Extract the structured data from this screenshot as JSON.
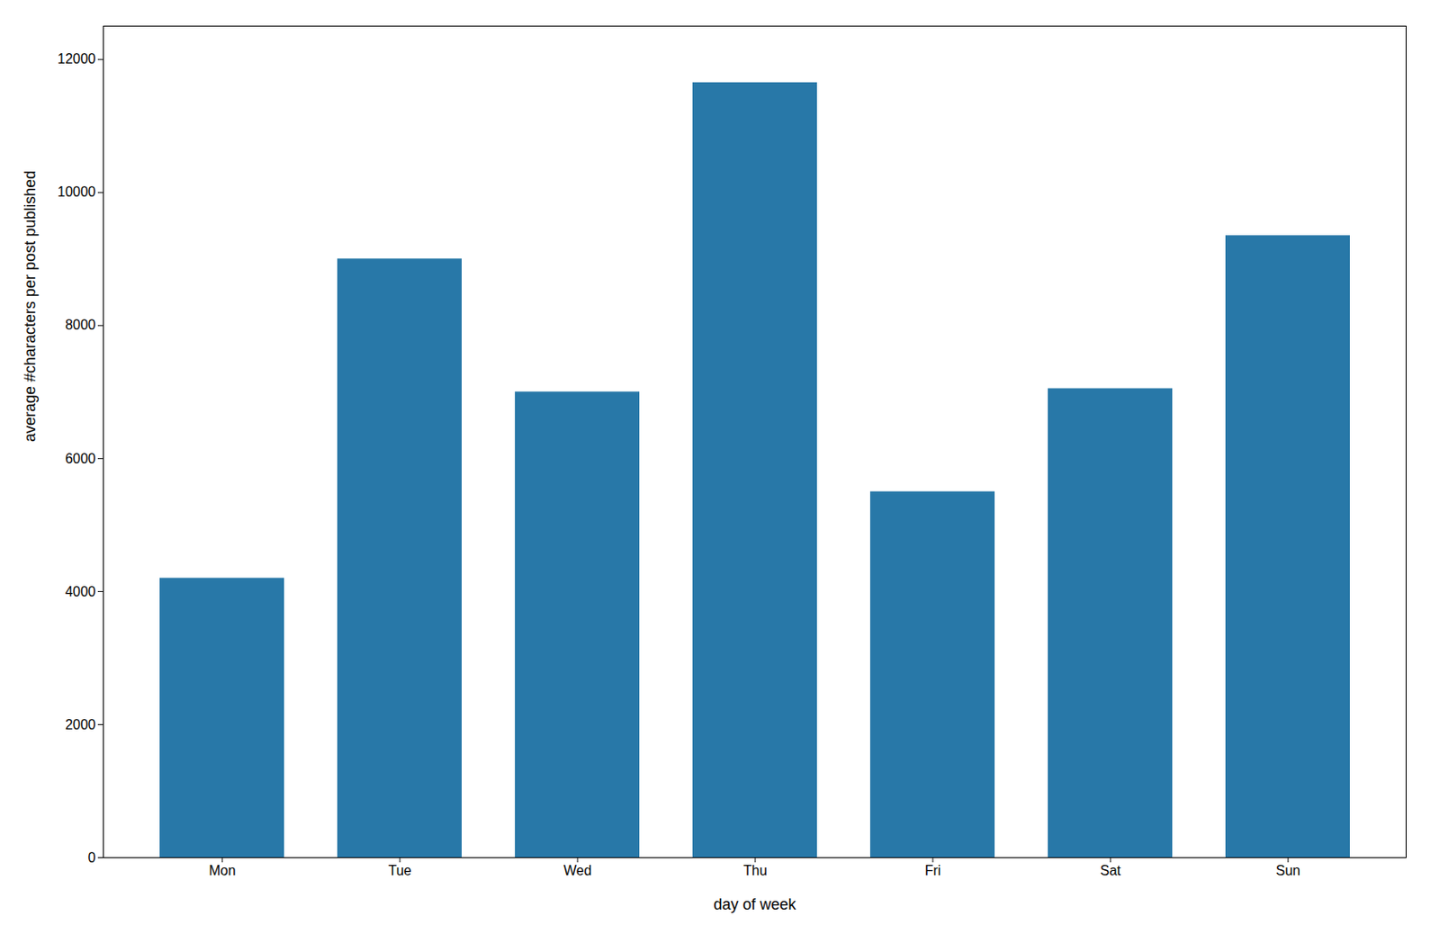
{
  "chart_data": {
    "type": "bar",
    "categories": [
      "Mon",
      "Tue",
      "Wed",
      "Thu",
      "Fri",
      "Sat",
      "Sun"
    ],
    "values": [
      4200,
      9000,
      7000,
      11650,
      5500,
      7050,
      9350
    ],
    "color": "#2878a8",
    "xlabel": "day of week",
    "ylabel": "average #characters per post published",
    "ylim": [
      0,
      12500
    ],
    "yticks": [
      0,
      2000,
      4000,
      6000,
      8000,
      10000,
      12000
    ],
    "grid": false
  }
}
